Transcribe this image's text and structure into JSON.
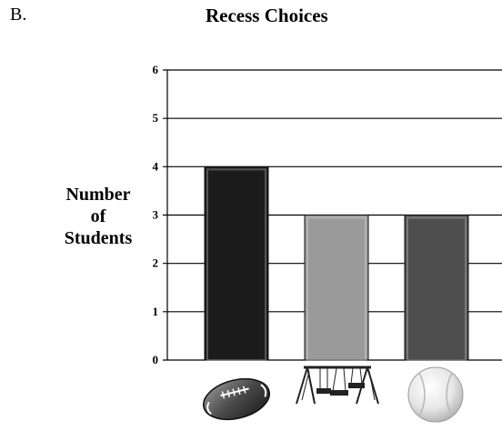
{
  "header": {
    "option_letter": "B."
  },
  "chart_data": {
    "type": "bar",
    "title": "Recess Choices",
    "ylabel_lines": [
      "Number",
      "of",
      "Students"
    ],
    "xlabel": "",
    "categories": [
      "football-icon",
      "swing-set-icon",
      "baseball-icon"
    ],
    "values": [
      4,
      3,
      3
    ],
    "bar_colors": [
      "#1c1c1c",
      "#9a9a9a",
      "#4e4e4e"
    ],
    "ylim": [
      0,
      6
    ],
    "yticks": [
      "0",
      "1",
      "2",
      "3",
      "4",
      "5",
      "6"
    ],
    "grid": true
  }
}
